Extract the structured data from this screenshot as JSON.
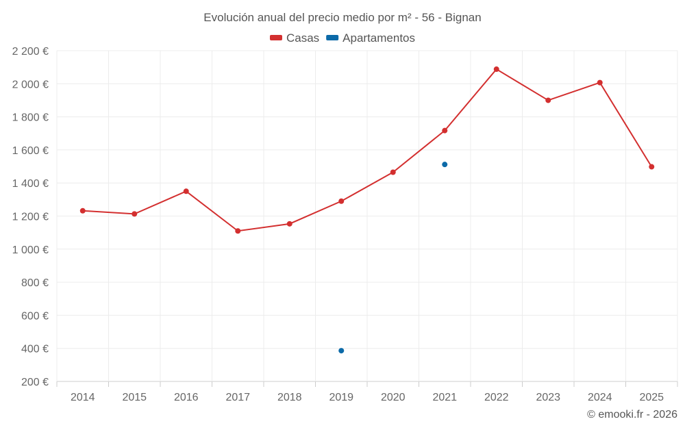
{
  "chart_data": {
    "type": "line",
    "title": "Evolución anual del precio medio por m² - 56 - Bignan",
    "categories": [
      "2014",
      "2015",
      "2016",
      "2017",
      "2018",
      "2019",
      "2020",
      "2021",
      "2022",
      "2023",
      "2024",
      "2025"
    ],
    "y_ticks": [
      "200 €",
      "400 €",
      "600 €",
      "800 €",
      "1 000 €",
      "1 200 €",
      "1 400 €",
      "1 600 €",
      "1 800 €",
      "2 000 €",
      "2 200 €"
    ],
    "y_tick_values": [
      200,
      400,
      600,
      800,
      1000,
      1200,
      1400,
      1600,
      1800,
      2000,
      2200
    ],
    "ylim": [
      200,
      2200
    ],
    "grid": true,
    "legend_position": "top-center",
    "series": [
      {
        "name": "Casas",
        "color": "#d32f2f",
        "style": "line-with-markers",
        "values": [
          1232,
          1213,
          1350,
          1110,
          1153,
          1290,
          1465,
          1717,
          2088,
          1900,
          2007,
          1498
        ]
      },
      {
        "name": "Apartamentos",
        "color": "#0c6aa8",
        "style": "markers-only",
        "values": [
          null,
          null,
          null,
          null,
          null,
          386,
          null,
          1512,
          null,
          null,
          null,
          null
        ]
      }
    ],
    "credit": "© emooki.fr - 2026"
  }
}
